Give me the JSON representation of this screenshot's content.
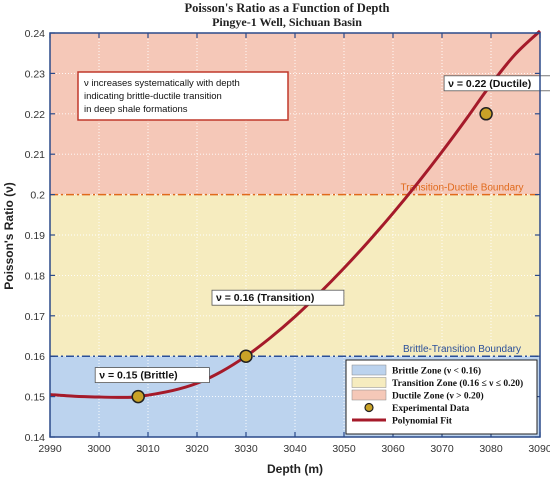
{
  "chart_data": {
    "type": "line",
    "title": "Poisson's Ratio as a Function of Depth",
    "subtitle": "Pingye-1 Well, Sichuan Basin",
    "xlabel": "Depth (m)",
    "ylabel": "Poisson's Ratio (ν)",
    "xlim": [
      2990,
      3090
    ],
    "ylim": [
      0.14,
      0.24
    ],
    "xticks": [
      2990,
      3000,
      3010,
      3020,
      3030,
      3040,
      3050,
      3060,
      3070,
      3080,
      3090
    ],
    "yticks": [
      0.14,
      0.15,
      0.16,
      0.17,
      0.18,
      0.19,
      0.2,
      0.21,
      0.22,
      0.23,
      0.24
    ],
    "grid": true,
    "zones": [
      {
        "name": "Brittle Zone (ν < 0.16)",
        "from": 0.14,
        "to": 0.16,
        "color": "#bcd3ee"
      },
      {
        "name": "Transition Zone (0.16 ≤ ν ≤ 0.20)",
        "from": 0.16,
        "to": 0.2,
        "color": "#f6ecbf"
      },
      {
        "name": "Ductile Zone (ν > 0.20)",
        "from": 0.2,
        "to": 0.24,
        "color": "#f5c8b8"
      }
    ],
    "boundaries": [
      {
        "value": 0.16,
        "label": "Brittle-Transition Boundary",
        "color": "#2a4f9a"
      },
      {
        "value": 0.2,
        "label": "Transition-Ductile Boundary",
        "color": "#e06a1c"
      }
    ],
    "series": [
      {
        "name": "Experimental Data",
        "kind": "points",
        "color": "#c9a227",
        "x": [
          3008,
          3030,
          3079
        ],
        "y": [
          0.15,
          0.16,
          0.22
        ],
        "labels": [
          "ν = 0.15 (Brittle)",
          "ν = 0.16 (Transition)",
          "ν = 0.22 (Ductile)"
        ]
      },
      {
        "name": "Polynomial Fit",
        "kind": "line",
        "color": "#a51a2a",
        "x": [
          2990,
          2995,
          3000,
          3005,
          3008,
          3015,
          3020,
          3025,
          3030,
          3035,
          3040,
          3045,
          3050,
          3055,
          3060,
          3065,
          3070,
          3075,
          3080,
          3085,
          3090
        ],
        "y": [
          0.1505,
          0.1501,
          0.1499,
          0.1498,
          0.15,
          0.1515,
          0.1533,
          0.1562,
          0.16,
          0.1646,
          0.1698,
          0.1756,
          0.1818,
          0.1884,
          0.1954,
          0.2028,
          0.2106,
          0.2188,
          0.2273,
          0.2348,
          0.2405
        ]
      }
    ],
    "annotation": "ν increases systematically with depth indicating brittle-ductile transition in deep shale formations",
    "annotation_lines": [
      "ν increases systematically with depth",
      "indicating brittle-ductile transition",
      "in deep shale formations"
    ],
    "legend_position": "bottom-right"
  },
  "colors": {
    "axis": "#2b4a8a",
    "grid": "#ffffff",
    "text": "#222222"
  }
}
